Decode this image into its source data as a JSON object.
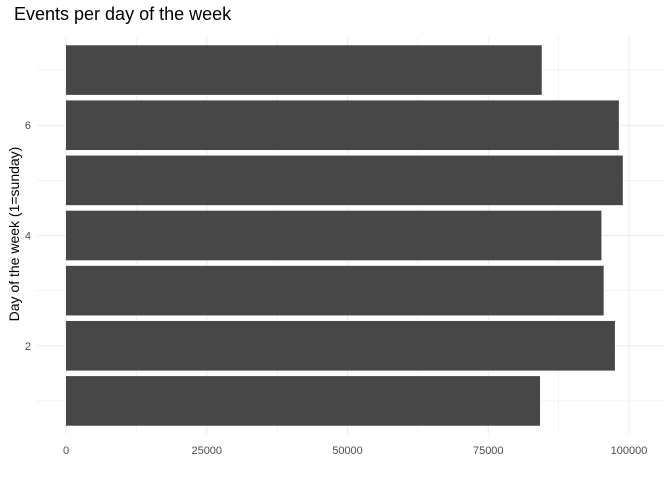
{
  "chart_data": {
    "type": "bar",
    "orientation": "horizontal",
    "title": "Events per day of the week",
    "xlabel": "",
    "ylabel": "Day of the week (1=sunday)",
    "categories": [
      1,
      2,
      3,
      4,
      5,
      6,
      7
    ],
    "values": [
      84200,
      97500,
      95500,
      95100,
      98900,
      98200,
      84500
    ],
    "xlim": [
      0,
      103000
    ],
    "ylim": [
      0.4,
      7.6
    ],
    "x_ticks": [
      0,
      25000,
      50000,
      75000,
      100000
    ],
    "x_tick_labels": [
      "0",
      "25000",
      "50000",
      "75000",
      "100000"
    ],
    "y_ticks": [
      2,
      4,
      6
    ],
    "y_tick_labels": [
      "2",
      "4",
      "6"
    ],
    "grid": true,
    "bar_color": "#474747",
    "grid_color": "#ebebeb"
  }
}
